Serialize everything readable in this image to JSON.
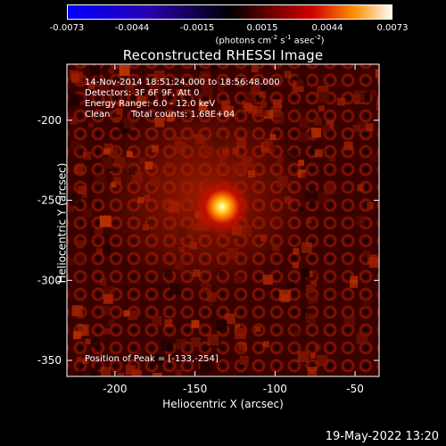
{
  "colorbar": {
    "ticks": [
      "-0.0073",
      "-0.0044",
      "-0.0015",
      "0.0015",
      "0.0044",
      "0.0073"
    ],
    "units_prefix": "(photons cm",
    "units_exp1": "-2",
    "units_mid1": " s",
    "units_exp2": "-1",
    "units_mid2": " asec",
    "units_exp3": "-2",
    "units_suffix": ")"
  },
  "chart_data": {
    "type": "heatmap",
    "title": "Reconstructed RHESSI Image",
    "xlabel": "Heliocentric X (arcsec)",
    "ylabel": "Heliocentric Y (arcsec)",
    "xlim": [
      -230,
      -35
    ],
    "ylim": [
      -360,
      -165
    ],
    "x_ticks": [
      "-200",
      "-150",
      "-100",
      "-50"
    ],
    "y_ticks": [
      "-200",
      "-250",
      "-300",
      "-350"
    ],
    "x_tick_values": [
      -200,
      -150,
      -100,
      -50
    ],
    "y_tick_values": [
      -200,
      -250,
      -300,
      -350
    ],
    "peak": {
      "x": -133,
      "y": -254
    },
    "color_range": [
      -0.0073,
      0.0073
    ],
    "annotations": {
      "time": "14-Nov-2014 18:51:24.000 to 18:56:48.000",
      "detectors": "Detectors: 3F 6F 9F, Att 0",
      "energy": "Energy Range: 6.0 - 12.0 keV",
      "method": "Clean",
      "counts": "Total counts: 1.68E+04",
      "peak_label": "Position of Peak = [-133,-254]"
    }
  },
  "footer": {
    "timestamp": "19-May-2022 13:20"
  }
}
